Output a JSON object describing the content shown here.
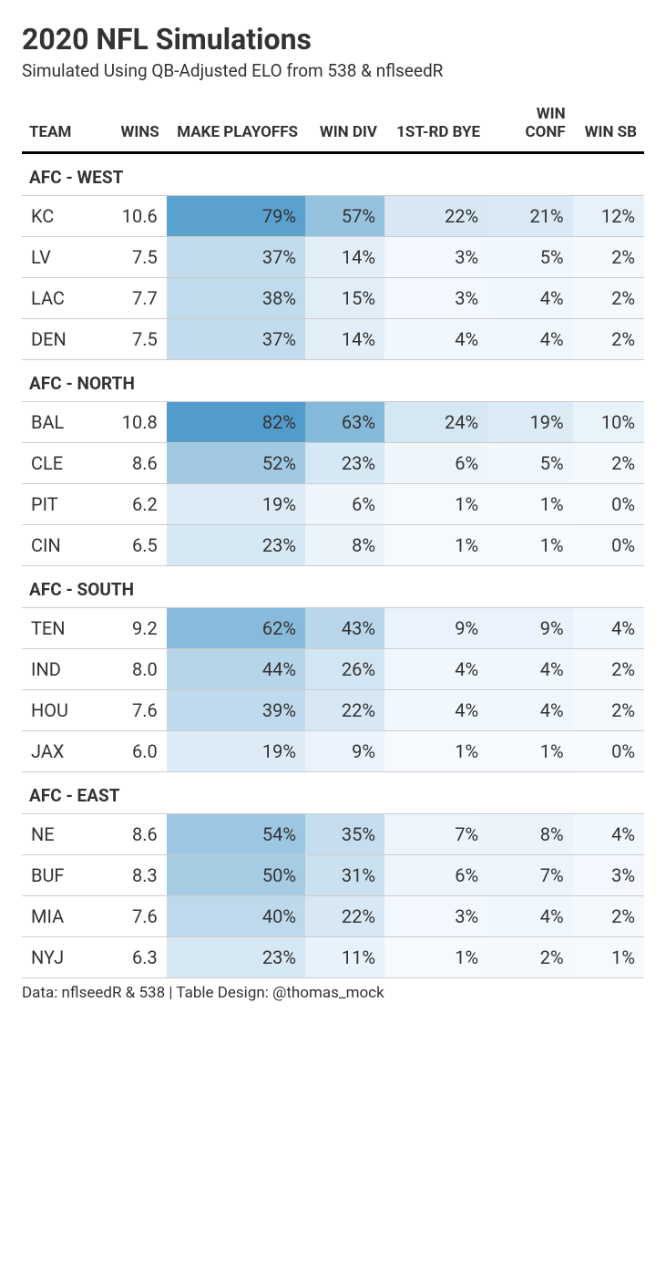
{
  "title": "2020 NFL Simulations",
  "subtitle": "Simulated Using QB-Adjusted ELO from 538 & nflseedR",
  "footer": "Data: nflseedR & 538 | Table Design: @thomas_mock",
  "columns": [
    "TEAM",
    "WINS",
    "MAKE PLAYOFFS",
    "WIN DIV",
    "1ST-RD BYE",
    "WIN CONF",
    "WIN SB"
  ],
  "header_fontsize": 17,
  "body_fontsize": 20,
  "title_fontsize": 32,
  "subtitle_fontsize": 19,
  "color_scale_field_min": 0,
  "color_scale_field_max": 85,
  "colors": {
    "text": "#333333",
    "header_border": "#000000",
    "row_border": "#cccccc",
    "background": "#ffffff",
    "scale_low": "#f7fbff",
    "scale_mid": "#bad7ea",
    "scale_high": "#4a98c9"
  },
  "groups": [
    {
      "name": "AFC - WEST",
      "rows": [
        {
          "team": "KC",
          "wins": "10.6",
          "playoffs": 79,
          "div": 57,
          "bye": 22,
          "conf": 21,
          "sb": 12
        },
        {
          "team": "LV",
          "wins": "7.5",
          "playoffs": 37,
          "div": 14,
          "bye": 3,
          "conf": 5,
          "sb": 2
        },
        {
          "team": "LAC",
          "wins": "7.7",
          "playoffs": 38,
          "div": 15,
          "bye": 3,
          "conf": 4,
          "sb": 2
        },
        {
          "team": "DEN",
          "wins": "7.5",
          "playoffs": 37,
          "div": 14,
          "bye": 4,
          "conf": 4,
          "sb": 2
        }
      ]
    },
    {
      "name": "AFC - NORTH",
      "rows": [
        {
          "team": "BAL",
          "wins": "10.8",
          "playoffs": 82,
          "div": 63,
          "bye": 24,
          "conf": 19,
          "sb": 10
        },
        {
          "team": "CLE",
          "wins": "8.6",
          "playoffs": 52,
          "div": 23,
          "bye": 6,
          "conf": 5,
          "sb": 2
        },
        {
          "team": "PIT",
          "wins": "6.2",
          "playoffs": 19,
          "div": 6,
          "bye": 1,
          "conf": 1,
          "sb": 0
        },
        {
          "team": "CIN",
          "wins": "6.5",
          "playoffs": 23,
          "div": 8,
          "bye": 1,
          "conf": 1,
          "sb": 0
        }
      ]
    },
    {
      "name": "AFC - SOUTH",
      "rows": [
        {
          "team": "TEN",
          "wins": "9.2",
          "playoffs": 62,
          "div": 43,
          "bye": 9,
          "conf": 9,
          "sb": 4
        },
        {
          "team": "IND",
          "wins": "8.0",
          "playoffs": 44,
          "div": 26,
          "bye": 4,
          "conf": 4,
          "sb": 2
        },
        {
          "team": "HOU",
          "wins": "7.6",
          "playoffs": 39,
          "div": 22,
          "bye": 4,
          "conf": 4,
          "sb": 2
        },
        {
          "team": "JAX",
          "wins": "6.0",
          "playoffs": 19,
          "div": 9,
          "bye": 1,
          "conf": 1,
          "sb": 0
        }
      ]
    },
    {
      "name": "AFC - EAST",
      "rows": [
        {
          "team": "NE",
          "wins": "8.6",
          "playoffs": 54,
          "div": 35,
          "bye": 7,
          "conf": 8,
          "sb": 4
        },
        {
          "team": "BUF",
          "wins": "8.3",
          "playoffs": 50,
          "div": 31,
          "bye": 6,
          "conf": 7,
          "sb": 3
        },
        {
          "team": "MIA",
          "wins": "7.6",
          "playoffs": 40,
          "div": 22,
          "bye": 3,
          "conf": 4,
          "sb": 2
        },
        {
          "team": "NYJ",
          "wins": "6.3",
          "playoffs": 23,
          "div": 11,
          "bye": 1,
          "conf": 2,
          "sb": 1
        }
      ]
    }
  ]
}
